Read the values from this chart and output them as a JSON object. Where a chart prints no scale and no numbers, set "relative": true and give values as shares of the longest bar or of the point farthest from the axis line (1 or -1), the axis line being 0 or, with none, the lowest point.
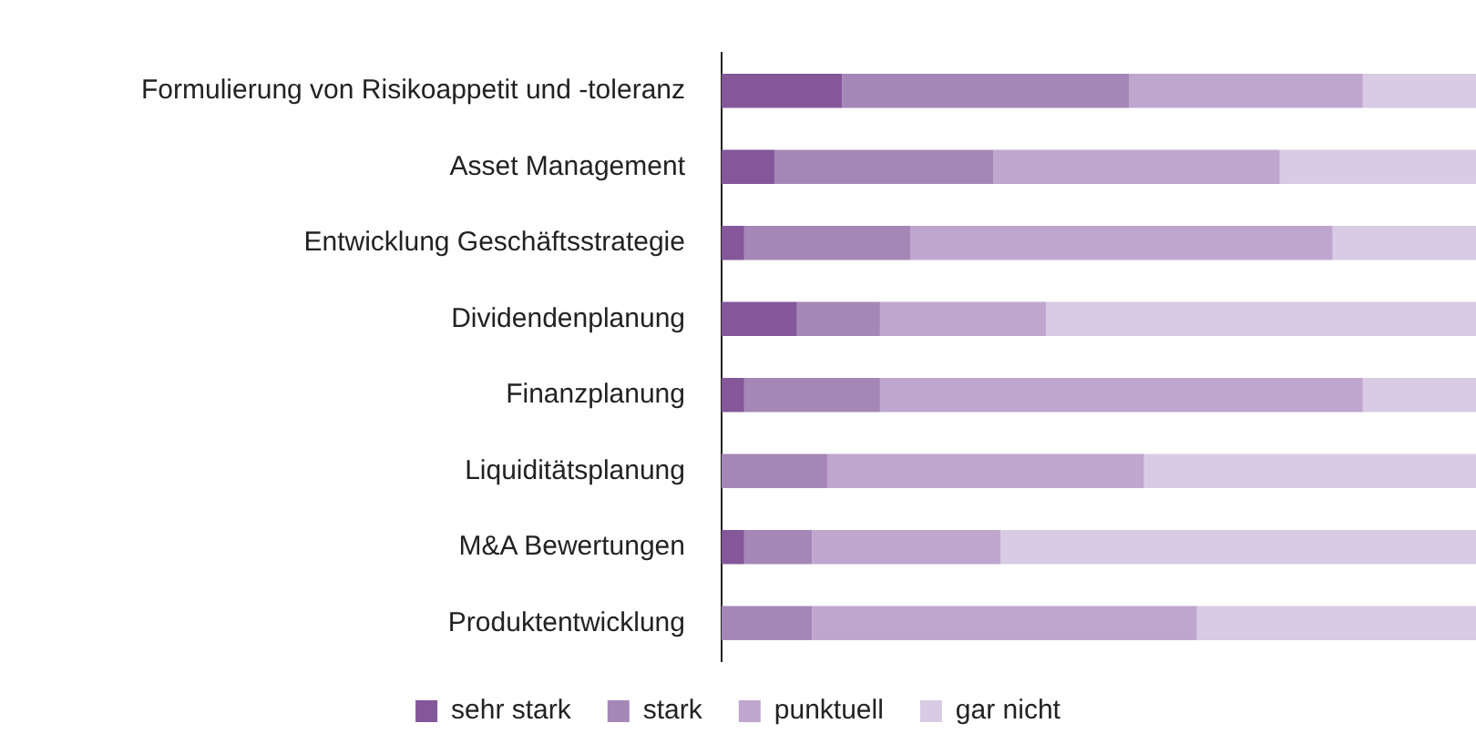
{
  "chart_data": {
    "type": "bar",
    "orientation": "horizontal",
    "stacked": true,
    "relative": true,
    "legend": "bottom",
    "categories": [
      "Formulierung von Risikoappetit und -toleranz",
      "Asset Management",
      "Entwicklung Geschäftsstrategie",
      "Dividendenplanung",
      "Finanzplanung",
      "Liquiditätsplanung",
      "M&A Bewertungen",
      "Produktentwicklung"
    ],
    "series": [
      {
        "name": "sehr stark",
        "color": "#84579a",
        "values": [
          0.16,
          0.07,
          0.03,
          0.1,
          0.03,
          0,
          0.03,
          0
        ]
      },
      {
        "name": "stark",
        "color": "#a587b7",
        "values": [
          0.38,
          0.29,
          0.22,
          0.11,
          0.18,
          0.14,
          0.09,
          0.12
        ]
      },
      {
        "name": "punktuell",
        "color": "#bfa6cf",
        "values": [
          0.31,
          0.38,
          0.56,
          0.22,
          0.64,
          0.42,
          0.25,
          0.51
        ]
      },
      {
        "name": "gar nicht",
        "color": "#d9cbe3",
        "values": [
          0.15,
          0.26,
          0.19,
          0.57,
          0.15,
          0.44,
          0.63,
          0.37
        ]
      }
    ]
  }
}
